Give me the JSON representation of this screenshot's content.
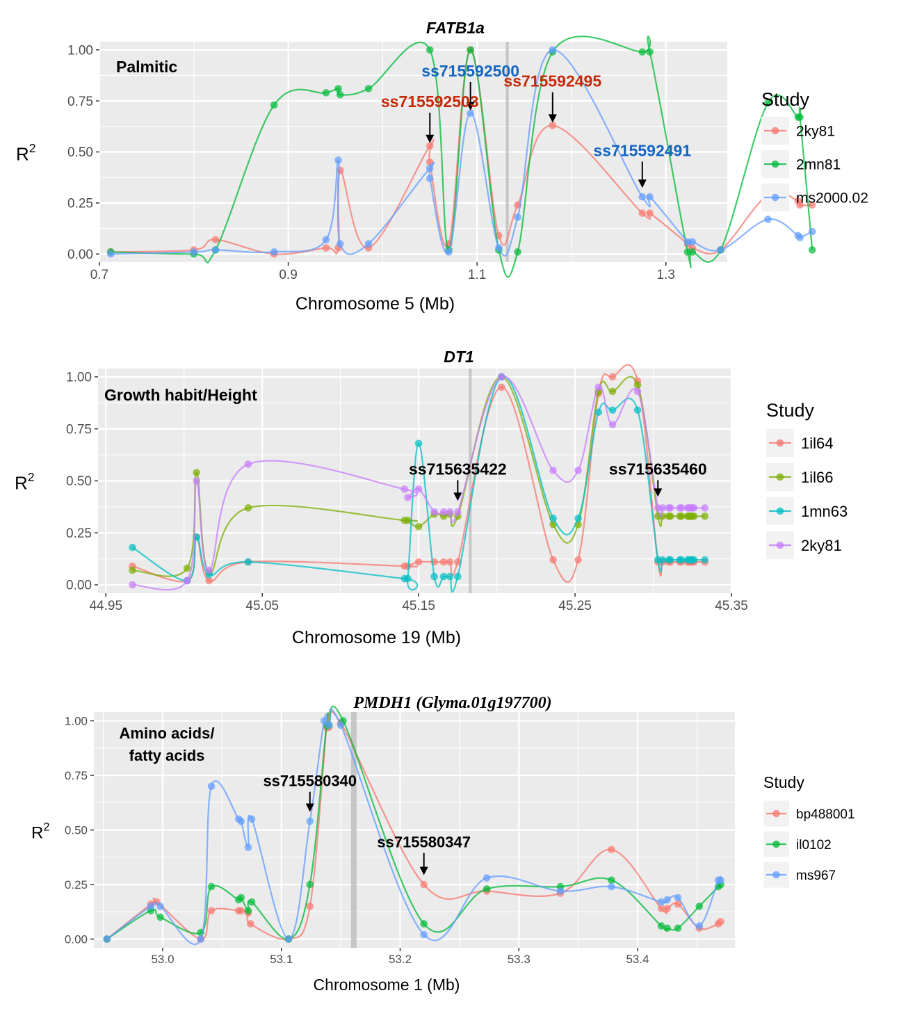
{
  "chart_data": [
    {
      "type": "line",
      "title": "FATB1a",
      "panel_label": "Palmitic",
      "xlabel": "Chromosome 5 (Mb)",
      "ylabel_main": "R",
      "ylabel_sup": "2",
      "xlim": [
        0.7,
        1.365
      ],
      "ylim": [
        -0.04,
        1.04
      ],
      "xticks": [
        0.7,
        0.9,
        1.1,
        1.3
      ],
      "xtick_labels": [
        "0.7",
        "0.9",
        "1.1",
        "1.3"
      ],
      "yticks": [
        0,
        0.25,
        0.5,
        0.75,
        1
      ],
      "ytick_labels": [
        "0.00",
        "0.25",
        "0.50",
        "0.75",
        "1.00"
      ],
      "minor_x": [
        0.8,
        1.0,
        1.2
      ],
      "gene_line_x": 1.132,
      "legend_title": "Study",
      "series": [
        {
          "name": "2ky81",
          "color": "#F8766D",
          "x": [
            0.712,
            0.8,
            0.823,
            0.885,
            0.94,
            0.953,
            0.955,
            0.985,
            1.05,
            1.05,
            1.07,
            1.093,
            1.123,
            1.143,
            1.18,
            1.275,
            1.283,
            1.323,
            1.328,
            1.358,
            1.408,
            1.44,
            1.442,
            1.455
          ],
          "y": [
            0.01,
            0.02,
            0.07,
            0.0,
            0.03,
            0.03,
            0.41,
            0.03,
            0.53,
            0.45,
            0.05,
            1.0,
            0.09,
            0.24,
            0.63,
            0.2,
            0.2,
            0.05,
            0.03,
            0.02,
            0.29,
            0.26,
            0.24,
            0.24
          ]
        },
        {
          "name": "2mn81",
          "color": "#00BA38",
          "x": [
            0.712,
            0.8,
            0.823,
            0.885,
            0.94,
            0.953,
            0.955,
            0.985,
            1.05,
            1.07,
            1.093,
            1.123,
            1.143,
            1.18,
            1.275,
            1.283,
            1.323,
            1.328,
            1.358,
            1.408,
            1.44,
            1.442,
            1.455
          ],
          "y": [
            0.01,
            0.0,
            0.02,
            0.73,
            0.79,
            0.81,
            0.78,
            0.81,
            1.0,
            0.02,
            1.0,
            0.02,
            0.01,
            0.99,
            0.99,
            0.99,
            0.01,
            0.01,
            0.02,
            0.74,
            0.67,
            0.67,
            0.02
          ]
        },
        {
          "name": "ms2000.02",
          "color": "#619CFF",
          "x": [
            0.712,
            0.8,
            0.823,
            0.885,
            0.94,
            0.953,
            0.955,
            0.985,
            1.05,
            1.05,
            1.07,
            1.093,
            1.123,
            1.143,
            1.18,
            1.275,
            1.283,
            1.323,
            1.328,
            1.358,
            1.408,
            1.44,
            1.442,
            1.455
          ],
          "y": [
            0.0,
            0.01,
            0.02,
            0.01,
            0.07,
            0.46,
            0.05,
            0.05,
            0.42,
            0.37,
            0.01,
            0.69,
            0.03,
            0.18,
            1.0,
            0.28,
            0.28,
            0.06,
            0.06,
            0.02,
            0.17,
            0.09,
            0.08,
            0.11
          ]
        }
      ],
      "annotations": [
        {
          "text": "ss715592500",
          "x": 1.093,
          "y": 0.69,
          "color": "#1565C0",
          "ty": 0.87
        },
        {
          "text": "ss715592495",
          "x": 1.18,
          "y": 0.63,
          "color": "#C62808",
          "ty": 0.82
        },
        {
          "text": "ss715592503",
          "x": 1.05,
          "y": 0.53,
          "color": "#C62808",
          "ty": 0.72
        },
        {
          "text": "ss715592491",
          "x": 1.275,
          "y": 0.31,
          "color": "#1565C0",
          "ty": 0.48
        }
      ]
    },
    {
      "type": "line",
      "title": "DT1",
      "panel_label": "Growth habit/Height",
      "xlabel": "Chromosome 19 (Mb)",
      "ylabel_main": "R",
      "ylabel_sup": "2",
      "xlim": [
        44.945,
        45.35
      ],
      "ylim": [
        -0.04,
        1.04
      ],
      "xticks": [
        44.95,
        45.05,
        45.15,
        45.25,
        45.35
      ],
      "xtick_labels": [
        "44.95",
        "45.05",
        "45.15",
        "45.25",
        "45.35"
      ],
      "yticks": [
        0,
        0.25,
        0.5,
        0.75,
        1
      ],
      "ytick_labels": [
        "0.00",
        "0.25",
        "0.50",
        "0.75",
        "1.00"
      ],
      "minor_x": [
        45.0,
        45.1,
        45.2,
        45.3
      ],
      "gene_line_x": 45.183,
      "legend_title": "Study",
      "series": [
        {
          "name": "1il64",
          "color": "#F8766D",
          "x": [
            44.967,
            45.002,
            45.008,
            45.016,
            45.041,
            45.141,
            45.143,
            45.15,
            45.16,
            45.166,
            45.17,
            45.175,
            45.203,
            45.236,
            45.252,
            45.265,
            45.274,
            45.29,
            45.303,
            45.306,
            45.31,
            45.311,
            45.317,
            45.318,
            45.322,
            45.323,
            45.324,
            45.325,
            45.326,
            45.333
          ],
          "y": [
            0.09,
            0.02,
            0.23,
            0.02,
            0.11,
            0.09,
            0.09,
            0.11,
            0.11,
            0.11,
            0.11,
            0.11,
            0.95,
            0.12,
            0.12,
            0.92,
            1.0,
            0.98,
            0.11,
            0.11,
            0.11,
            0.11,
            0.11,
            0.11,
            0.11,
            0.11,
            0.11,
            0.11,
            0.11,
            0.11
          ]
        },
        {
          "name": "1il66",
          "color": "#7CAE00",
          "x": [
            44.967,
            45.002,
            45.008,
            45.016,
            45.041,
            45.141,
            45.143,
            45.15,
            45.16,
            45.166,
            45.17,
            45.175,
            45.203,
            45.236,
            45.252,
            45.265,
            45.274,
            45.29,
            45.303,
            45.306,
            45.31,
            45.311,
            45.317,
            45.318,
            45.322,
            45.323,
            45.324,
            45.325,
            45.326,
            45.333
          ],
          "y": [
            0.07,
            0.08,
            0.54,
            0.06,
            0.37,
            0.31,
            0.31,
            0.28,
            0.34,
            0.33,
            0.34,
            0.33,
            1.0,
            0.29,
            0.29,
            0.93,
            0.93,
            0.96,
            0.33,
            0.33,
            0.33,
            0.33,
            0.33,
            0.33,
            0.33,
            0.33,
            0.33,
            0.33,
            0.33,
            0.33
          ]
        },
        {
          "name": "1mn63",
          "color": "#00BFC4",
          "x": [
            44.967,
            45.002,
            45.008,
            45.016,
            45.041,
            45.141,
            45.143,
            45.15,
            45.16,
            45.166,
            45.17,
            45.175,
            45.203,
            45.236,
            45.252,
            45.265,
            45.274,
            45.29,
            45.303,
            45.306,
            45.31,
            45.311,
            45.317,
            45.318,
            45.322,
            45.323,
            45.324,
            45.325,
            45.326,
            45.333
          ],
          "y": [
            0.18,
            0.02,
            0.23,
            0.05,
            0.11,
            0.03,
            0.03,
            0.68,
            0.04,
            0.04,
            0.04,
            0.04,
            1.0,
            0.32,
            0.32,
            0.83,
            0.84,
            0.84,
            0.12,
            0.12,
            0.12,
            0.12,
            0.12,
            0.12,
            0.12,
            0.12,
            0.12,
            0.12,
            0.12,
            0.12
          ]
        },
        {
          "name": "2ky81",
          "color": "#C77CFF",
          "x": [
            44.967,
            45.002,
            45.008,
            45.016,
            45.041,
            45.141,
            45.143,
            45.15,
            45.16,
            45.166,
            45.17,
            45.175,
            45.203,
            45.236,
            45.252,
            45.265,
            45.274,
            45.29,
            45.303,
            45.306,
            45.31,
            45.311,
            45.317,
            45.318,
            45.322,
            45.323,
            45.324,
            45.325,
            45.326,
            45.333
          ],
          "y": [
            0.0,
            0.02,
            0.5,
            0.07,
            0.58,
            0.46,
            0.42,
            0.46,
            0.35,
            0.35,
            0.35,
            0.35,
            1.0,
            0.55,
            0.55,
            0.95,
            0.77,
            0.93,
            0.37,
            0.37,
            0.37,
            0.37,
            0.37,
            0.37,
            0.37,
            0.37,
            0.37,
            0.37,
            0.37,
            0.37
          ]
        }
      ],
      "annotations": [
        {
          "text": "ss715635422",
          "x": 45.175,
          "y": 0.39,
          "color": "#000000",
          "ty": 0.53
        },
        {
          "text": "ss715635460",
          "x": 45.303,
          "y": 0.41,
          "color": "#000000",
          "ty": 0.53
        }
      ]
    },
    {
      "type": "line",
      "title": "PMDH1 (Glyma.01g197700)",
      "panel_label_lines": [
        "Amino acids/",
        "fatty acids"
      ],
      "xlabel": "Chromosome 1 (Mb)",
      "ylabel_main": "R",
      "ylabel_sup": "2",
      "xlim": [
        52.942,
        53.482
      ],
      "ylim": [
        -0.04,
        1.04
      ],
      "xticks": [
        53.0,
        53.1,
        53.2,
        53.3,
        53.4
      ],
      "xtick_labels": [
        "53.0",
        "53.1",
        "53.2",
        "53.3",
        "53.4"
      ],
      "yticks": [
        0,
        0.25,
        0.5,
        0.75,
        1
      ],
      "ytick_labels": [
        "0.00",
        "0.25",
        "0.50",
        "0.75",
        "1.00"
      ],
      "minor_x": [
        52.95,
        53.05,
        53.15,
        53.25,
        53.35,
        53.45
      ],
      "gene_line_x": 53.161,
      "legend_title": "Study",
      "series": [
        {
          "name": "bp488001",
          "color": "#F8766D",
          "x": [
            52.953,
            52.99,
            52.995,
            53.032,
            53.041,
            53.064,
            53.066,
            53.072,
            53.074,
            53.106,
            53.124,
            53.138,
            53.14,
            53.15,
            53.22,
            53.273,
            53.335,
            53.378,
            53.42,
            53.425,
            53.434,
            53.452,
            53.468,
            53.47
          ],
          "y": [
            0.0,
            0.16,
            0.17,
            0.0,
            0.13,
            0.13,
            0.13,
            0.12,
            0.07,
            0.0,
            0.15,
            0.97,
            0.97,
            0.99,
            0.25,
            0.22,
            0.21,
            0.41,
            0.14,
            0.14,
            0.16,
            0.05,
            0.07,
            0.08
          ]
        },
        {
          "name": "il0102",
          "color": "#00BA38",
          "x": [
            52.953,
            52.99,
            52.998,
            53.032,
            53.041,
            53.064,
            53.066,
            53.072,
            53.075,
            53.106,
            53.124,
            53.138,
            53.14,
            53.152,
            53.22,
            53.273,
            53.335,
            53.378,
            53.42,
            53.425,
            53.434,
            53.452,
            53.468,
            53.47
          ],
          "y": [
            0.0,
            0.13,
            0.1,
            0.03,
            0.24,
            0.18,
            0.19,
            0.13,
            0.17,
            0.0,
            0.25,
            0.98,
            0.98,
            1.0,
            0.07,
            0.23,
            0.24,
            0.27,
            0.06,
            0.05,
            0.05,
            0.15,
            0.24,
            0.25
          ]
        },
        {
          "name": "ms967",
          "color": "#619CFF",
          "x": [
            52.953,
            52.99,
            52.998,
            53.032,
            53.041,
            53.064,
            53.066,
            53.072,
            53.075,
            53.106,
            53.124,
            53.136,
            53.14,
            53.15,
            53.22,
            53.273,
            53.335,
            53.378,
            53.42,
            53.425,
            53.434,
            53.452,
            53.468,
            53.47
          ],
          "y": [
            0.0,
            0.15,
            0.15,
            0.0,
            0.7,
            0.55,
            0.54,
            0.42,
            0.55,
            0.0,
            0.54,
            1.0,
            0.98,
            0.98,
            0.02,
            0.28,
            0.22,
            0.24,
            0.17,
            0.18,
            0.19,
            0.06,
            0.27,
            0.27
          ]
        }
      ],
      "annotations": [
        {
          "text": "ss715580340",
          "x": 53.124,
          "y": 0.57,
          "color": "#000000",
          "ty": 0.7
        },
        {
          "text": "ss715580347",
          "x": 53.22,
          "y": 0.28,
          "color": "#000000",
          "ty": 0.42
        }
      ]
    }
  ]
}
